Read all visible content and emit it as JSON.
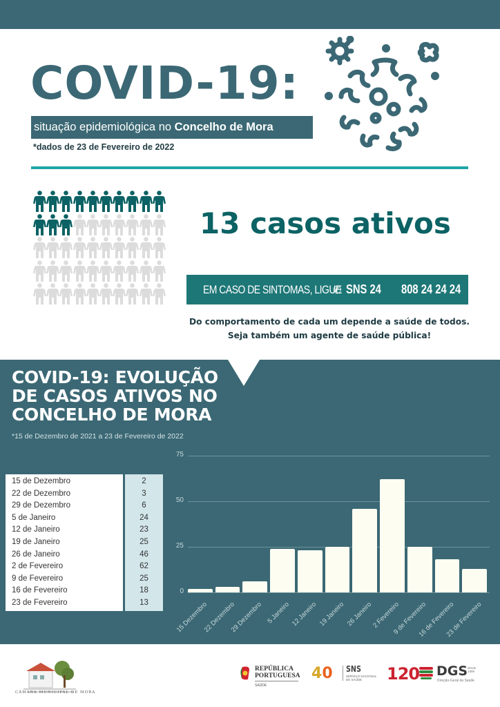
{
  "header": {
    "title": "COVID-19:",
    "subtitle_regular": "situação epidemiológica no ",
    "subtitle_bold": "Concelho de Mora",
    "date_note": "*dados de 23 de Fevereiro de 2022"
  },
  "summary": {
    "active_cases": 13,
    "total_icons": 50,
    "cases_label": "13 casos ativos",
    "active_color": "#0c6264",
    "inactive_color": "#dcdcdc"
  },
  "sns_banner": {
    "text": "EM CASO DE SINTOMAS, LIGUE",
    "icon": "phone-icon",
    "service": "SNS 24",
    "phone": "808 24 24 24"
  },
  "slogan": {
    "line1": "Do comportamento de cada um depende a saúde de todos.",
    "line2": "Seja também um agente de saúde pública!"
  },
  "chart_section": {
    "title": "COVID-19: EVOLUÇÃO DE CASOS ATIVOS NO CONCELHO DE MORA",
    "note": "*15 de Dezembro de 2021 a 23 de Fevereiro  de 2022"
  },
  "table": {
    "rows": [
      {
        "date": "15 de Dezembro",
        "value": "2"
      },
      {
        "date": "22 de Dezembro",
        "value": "3"
      },
      {
        "date": "29 de Dezembro",
        "value": "6"
      },
      {
        "date": "5 de Janeiro",
        "value": "24"
      },
      {
        "date": "12 de Janeiro",
        "value": "23"
      },
      {
        "date": "19 de Janeiro",
        "value": "25"
      },
      {
        "date": "26 de Janeiro",
        "value": "46"
      },
      {
        "date": "2 de Fevereiro",
        "value": "62"
      },
      {
        "date": "9 de Fevereiro",
        "value": "25"
      },
      {
        "date": "16 de Fevereiro",
        "value": "18"
      },
      {
        "date": "23 de Fevereiro",
        "value": "13"
      }
    ]
  },
  "chart_data": {
    "type": "bar",
    "title": "COVID-19: Evolução de casos ativos no Concelho de Mora",
    "subtitle": "*15 de Dezembro de 2021 a 23 de Fevereiro  de 2022",
    "categories": [
      "15 Dezembro",
      "22 Dezembro",
      "29 Dezembro",
      "5 Janeiro",
      "12 Janeiro",
      "19 Janeiro",
      "26 Janeiro",
      "2 Fevereiro",
      "9 de Fevereiro",
      "16 de Fevereiro",
      "23 de Fevereiro"
    ],
    "values": [
      2,
      3,
      6,
      24,
      23,
      25,
      46,
      62,
      25,
      18,
      13
    ],
    "xlabel": "",
    "ylabel": "",
    "ylim": [
      0,
      75
    ],
    "yticks": [
      0,
      25,
      50,
      75
    ],
    "grid": true,
    "legend": "none",
    "bar_color": "#fdfdf2",
    "background": "#3b6874"
  },
  "footer": {
    "municipality": "CÂMARA MUNICIPAL DE MORA",
    "rp_line1": "REPÚBLICA",
    "rp_line2": "PORTUGUESA",
    "rp_sub": "SAÚDE",
    "sns_years": "40",
    "sns_word": "SNS",
    "sns_sub1": "SERVIÇO NACIONAL",
    "sns_sub2": "DE SAÚDE",
    "dgs_years": "120",
    "dgs_word": "DGS",
    "dgs_since1": "desde",
    "dgs_since2": "1899",
    "dgs_sub": "Direção-Geral da Saúde"
  }
}
